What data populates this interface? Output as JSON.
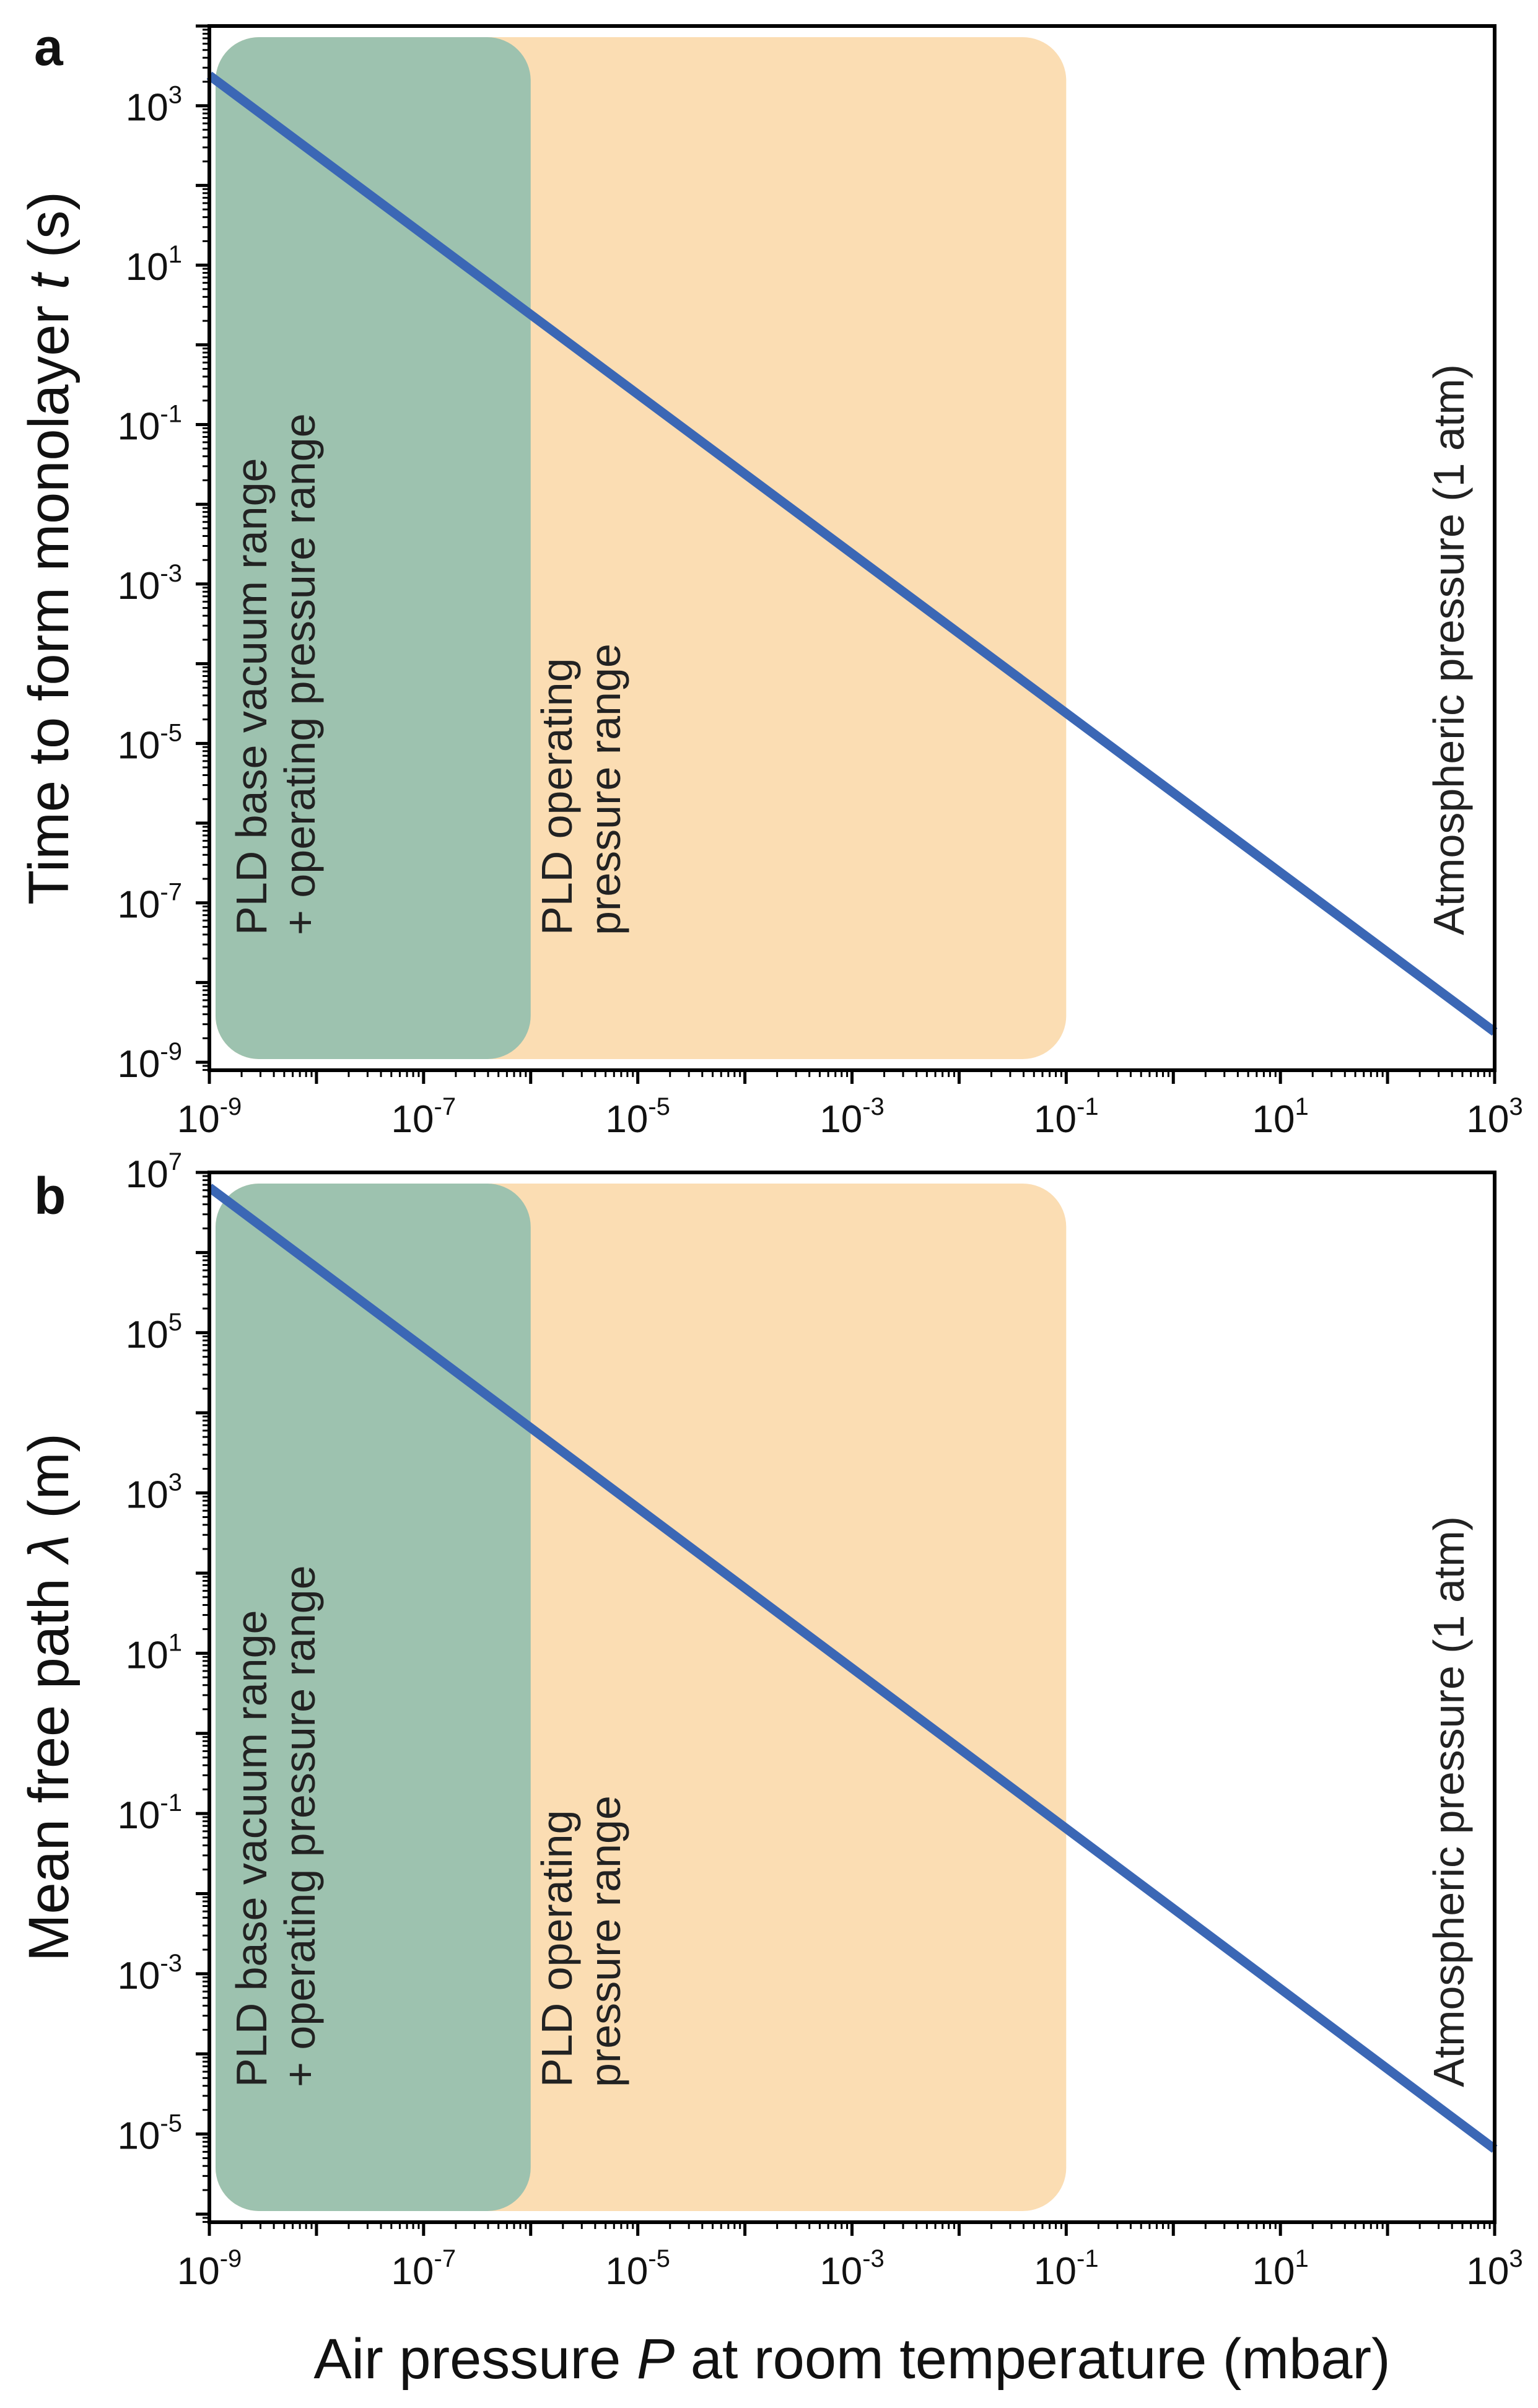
{
  "colors": {
    "line": "#3b67b5",
    "green_region": "#9dc2af",
    "orange_region": "#fbddb3",
    "axis": "#000000"
  },
  "chart_data": [
    {
      "panel": "a",
      "type": "line",
      "scale": "log-log",
      "xlabel": "Air pressure P at room temperature (mbar)",
      "ylabel_prefix": "Time to form monolayer ",
      "ylabel_var": "t",
      "ylabel_suffix": " (s)",
      "xlim_exp": [
        -9,
        3
      ],
      "ylim_exp": [
        -9.1,
        4
      ],
      "x_ticks": [
        {
          "base": "10",
          "exp": "-9"
        },
        {
          "base": "10",
          "exp": "-7"
        },
        {
          "base": "10",
          "exp": "-5"
        },
        {
          "base": "10",
          "exp": "-3"
        },
        {
          "base": "10",
          "exp": "-1"
        },
        {
          "base": "10",
          "exp": "1"
        },
        {
          "base": "10",
          "exp": "3"
        }
      ],
      "x_ticks_exp": [
        -9,
        -7,
        -5,
        -3,
        -1,
        1,
        3
      ],
      "y_ticks": [
        {
          "base": "10",
          "exp": "-9"
        },
        {
          "base": "10",
          "exp": "-7"
        },
        {
          "base": "10",
          "exp": "-5"
        },
        {
          "base": "10",
          "exp": "-3"
        },
        {
          "base": "10",
          "exp": "-1"
        },
        {
          "base": "10",
          "exp": "1"
        },
        {
          "base": "10",
          "exp": "3"
        }
      ],
      "y_ticks_exp": [
        -9,
        -7,
        -5,
        -3,
        -1,
        1,
        3
      ],
      "series": [
        {
          "name": "Time to form monolayer",
          "x": [
            1e-09,
            1000.0
          ],
          "y": [
            2400,
            2.4e-09
          ]
        }
      ],
      "regions": [
        {
          "name": "PLD operating pressure range",
          "x_exp_range": [
            -9,
            -1
          ],
          "label_lines": [
            "PLD operating",
            "pressure range"
          ]
        },
        {
          "name": "PLD base vacuum range + operating pressure range",
          "x_exp_range": [
            -9,
            -6
          ],
          "label_lines": [
            "PLD base vacuum range",
            "+ operating pressure range"
          ]
        }
      ],
      "annotation": "Atmospheric pressure (1 atm)"
    },
    {
      "panel": "b",
      "type": "line",
      "scale": "log-log",
      "xlabel": "Air pressure P at room temperature (mbar)",
      "ylabel_prefix": "Mean free path ",
      "ylabel_var": "λ",
      "ylabel_suffix": " (m)",
      "xlim_exp": [
        -9,
        3
      ],
      "ylim_exp": [
        -6.1,
        7
      ],
      "x_ticks": [
        {
          "base": "10",
          "exp": "-9"
        },
        {
          "base": "10",
          "exp": "-7"
        },
        {
          "base": "10",
          "exp": "-5"
        },
        {
          "base": "10",
          "exp": "-3"
        },
        {
          "base": "10",
          "exp": "-1"
        },
        {
          "base": "10",
          "exp": "1"
        },
        {
          "base": "10",
          "exp": "3"
        }
      ],
      "x_ticks_exp": [
        -9,
        -7,
        -5,
        -3,
        -1,
        1,
        3
      ],
      "y_ticks": [
        {
          "base": "10",
          "exp": "-5"
        },
        {
          "base": "10",
          "exp": "-3"
        },
        {
          "base": "10",
          "exp": "-1"
        },
        {
          "base": "10",
          "exp": "1"
        },
        {
          "base": "10",
          "exp": "3"
        },
        {
          "base": "10",
          "exp": "5"
        },
        {
          "base": "10",
          "exp": "7"
        }
      ],
      "y_ticks_exp": [
        -5,
        -3,
        -1,
        1,
        3,
        5,
        7
      ],
      "series": [
        {
          "name": "Mean free path",
          "x": [
            1e-09,
            1000.0
          ],
          "y": [
            6500000.0,
            6.5e-06
          ]
        }
      ],
      "regions": [
        {
          "name": "PLD operating pressure range",
          "x_exp_range": [
            -9,
            -1
          ],
          "label_lines": [
            "PLD operating",
            "pressure range"
          ]
        },
        {
          "name": "PLD base vacuum range + operating pressure range",
          "x_exp_range": [
            -9,
            -6
          ],
          "label_lines": [
            "PLD base vacuum range",
            "+ operating pressure range"
          ]
        }
      ],
      "annotation": "Atmospheric pressure (1 atm)"
    }
  ],
  "shared_xlabel": {
    "prefix": "Air pressure ",
    "var": "P",
    "suffix": " at room temperature (mbar)"
  }
}
